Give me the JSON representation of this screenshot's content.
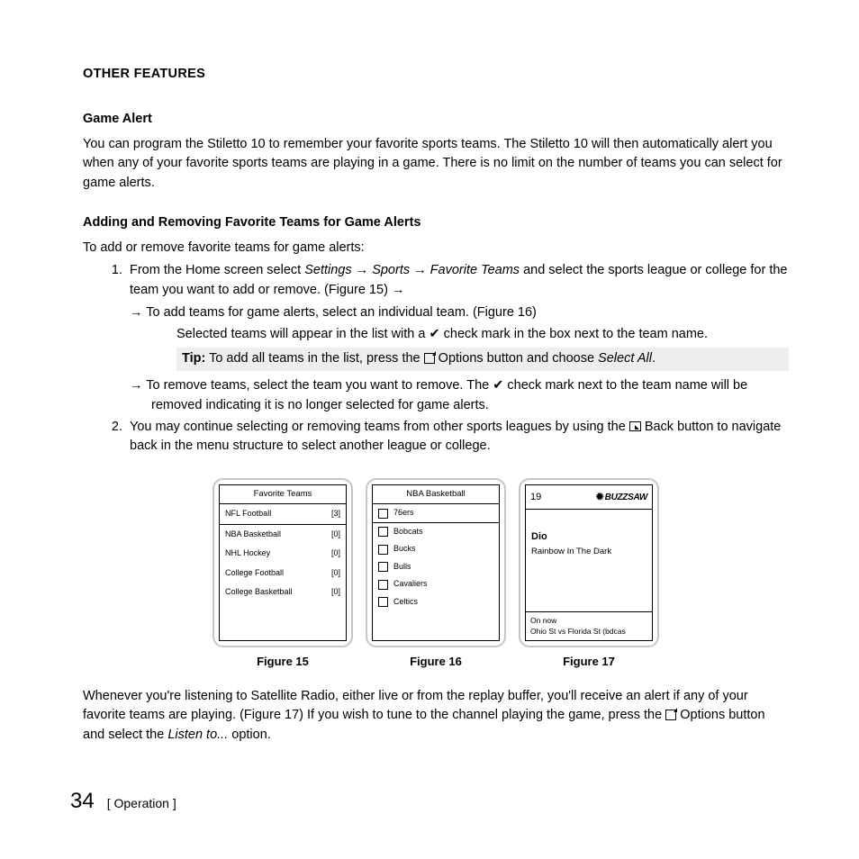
{
  "heading": "OTHER FEATURES",
  "gameAlert": {
    "title": "Game Alert",
    "body": "You can program the Stiletto 10 to remember your favorite sports teams. The Stiletto 10 will then automatically alert you when any of your favorite sports teams are playing in a game. There is no limit on the number of teams you can select for game alerts."
  },
  "addRemove": {
    "title": "Adding and Removing Favorite Teams for Game Alerts",
    "intro": "To add or remove favorite teams for game alerts:",
    "step1_a": "From the Home screen select ",
    "step1_path1": "Settings",
    "step1_path2": "Sports",
    "step1_path3": "Favorite Teams",
    "step1_b": " and select the sports league or college for the team you want to add or remove. (Figure 15) ",
    "bullet_add": " To add teams for game alerts, select an individual team. (Figure 16)",
    "bullet_add_detail": "Selected teams will appear in the list with a ✔ check mark in the box next to the team name.",
    "tip_a": "Tip:",
    "tip_b": " To add all teams in the list, press the ",
    "tip_c": " Options button and choose ",
    "tip_d": "Select All",
    "bullet_remove": " To remove teams, select the team you want to remove. The ✔ check mark next to the team name will be removed indicating it is no longer selected for game alerts.",
    "step2_a": "You may continue selecting or removing teams from other sports leagues by using the ",
    "step2_b": " Back button to navigate back in the menu structure to select another league or college."
  },
  "fig15": {
    "title": "Favorite Teams",
    "rows": [
      {
        "label": "NFL Football",
        "count": "[3]"
      },
      {
        "label": "NBA Basketball",
        "count": "[0]"
      },
      {
        "label": "NHL Hockey",
        "count": "[0]"
      },
      {
        "label": "College Football",
        "count": "[0]"
      },
      {
        "label": "College Basketball",
        "count": "[0]"
      }
    ],
    "caption": "Figure 15"
  },
  "fig16": {
    "title": "NBA Basketball",
    "teams": [
      "76ers",
      "Bobcats",
      "Bucks",
      "Bulls",
      "Cavaliers",
      "Celtics"
    ],
    "caption": "Figure 16"
  },
  "fig17": {
    "channel": "19",
    "station": "BUZZSAW",
    "artist": "Dio",
    "song": "Rainbow In The Dark",
    "onnow_label": "On now",
    "onnow_text": "Ohio St vs Florida St (bdcas",
    "caption": "Figure 17"
  },
  "closing_a": "Whenever you're listening to Satellite Radio, either live or from the replay buffer, you'll receive an alert if any of your favorite teams are playing. (Figure 17) If you wish to tune to the channel playing the game, press the ",
  "closing_b": " Options button and select the ",
  "closing_c": "Listen to...",
  "closing_d": " option.",
  "page": {
    "num": "34",
    "label": "Operation"
  }
}
